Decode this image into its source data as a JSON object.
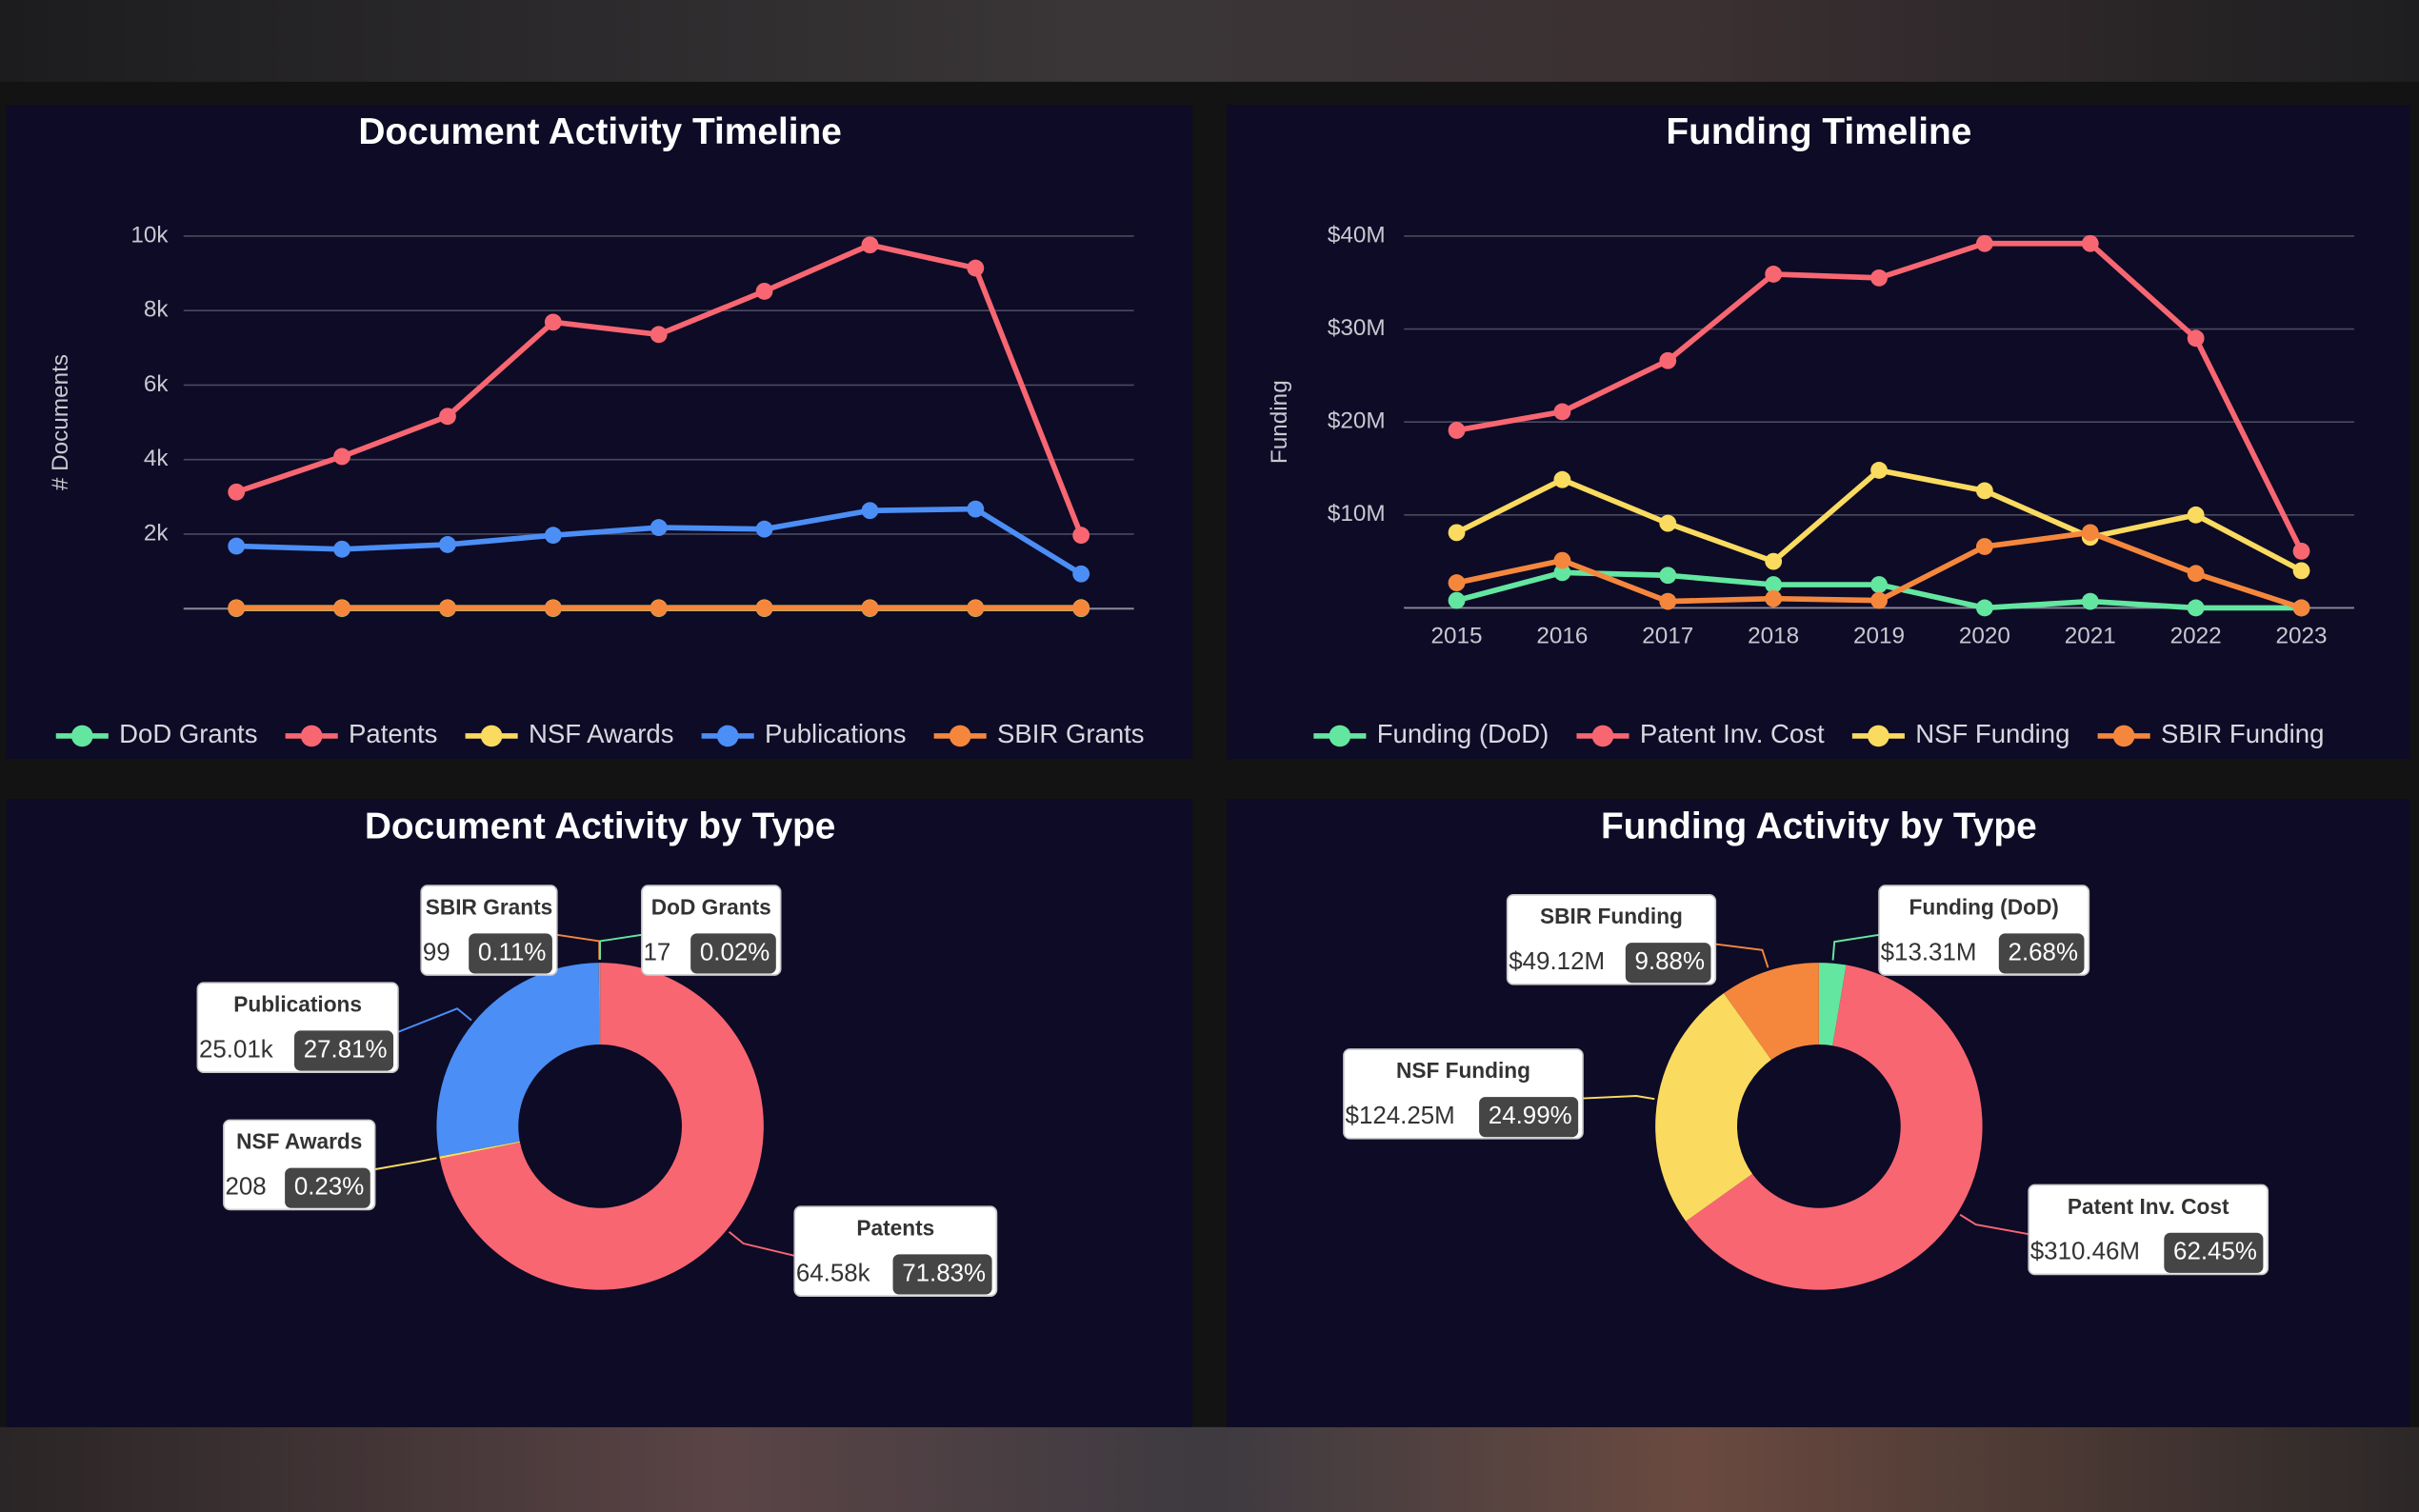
{
  "chart_data": [
    {
      "type": "line",
      "title": "Document Activity Timeline",
      "ylabel": "# Documents",
      "categories": [
        null,
        null,
        null,
        null,
        null,
        null,
        null,
        null,
        null
      ],
      "series": [
        {
          "name": "DoD Grants",
          "color": "#63e6a0",
          "values": [
            2,
            2,
            2,
            2,
            2,
            2,
            2,
            2,
            1
          ]
        },
        {
          "name": "Patents",
          "color": "#f86672",
          "values": [
            3130,
            4083,
            5161,
            7689,
            7358,
            8518,
            9762,
            9140,
            1969
          ]
        },
        {
          "name": "NSF Awards",
          "color": "#fadb5f",
          "values": [
            23,
            23,
            23,
            23,
            23,
            23,
            23,
            23,
            24
          ]
        },
        {
          "name": "Publications",
          "color": "#4b8ef5",
          "values": [
            1679,
            1596,
            1720,
            1969,
            2176,
            2135,
            2632,
            2674,
            933
          ]
        },
        {
          "name": "SBIR Grants",
          "color": "#f5873d",
          "values": [
            11,
            11,
            11,
            11,
            11,
            11,
            11,
            11,
            11
          ]
        }
      ],
      "ylim": [
        0,
        10000
      ],
      "yticks": [
        {
          "value": 2000,
          "label": "2k"
        },
        {
          "value": 4000,
          "label": "4k"
        },
        {
          "value": 6000,
          "label": "6k"
        },
        {
          "value": 8000,
          "label": "8k"
        },
        {
          "value": 10000,
          "label": "10k"
        }
      ],
      "grid": true,
      "legend": "bottom"
    },
    {
      "type": "line",
      "title": "Funding Timeline",
      "ylabel": "Funding",
      "categories": [
        "2015",
        "2016",
        "2017",
        "2018",
        "2019",
        "2020",
        "2021",
        "2022",
        "2023"
      ],
      "series": [
        {
          "name": "Funding (DoD)",
          "color": "#63e6a0",
          "values": [
            800000,
            3800000,
            3500000,
            2500000,
            2500000,
            0,
            700000,
            0,
            0
          ]
        },
        {
          "name": "Patent Inv. Cost",
          "color": "#f86672",
          "values": [
            19100000,
            21100000,
            26600000,
            35900000,
            35500000,
            39200000,
            39200000,
            29000000,
            6100000
          ]
        },
        {
          "name": "NSF Funding",
          "color": "#fadb5f",
          "values": [
            8100000,
            13800000,
            9100000,
            5000000,
            14800000,
            12600000,
            7600000,
            10000000,
            4000000
          ]
        },
        {
          "name": "SBIR Funding",
          "color": "#f5873d",
          "values": [
            2700000,
            5100000,
            700000,
            1000000,
            800000,
            6600000,
            8100000,
            3700000,
            0
          ]
        }
      ],
      "ylim": [
        0,
        40000000
      ],
      "yticks": [
        {
          "value": 10000000,
          "label": "$10M"
        },
        {
          "value": 20000000,
          "label": "$20M"
        },
        {
          "value": 30000000,
          "label": "$30M"
        },
        {
          "value": 40000000,
          "label": "$40M"
        }
      ],
      "grid": true,
      "legend": "bottom"
    },
    {
      "type": "pie",
      "title": "Document Activity by Type",
      "donut": true,
      "categories": [
        "Patents",
        "NSF Awards",
        "Publications",
        "SBIR Grants",
        "DoD Grants"
      ],
      "values": [
        64580,
        208,
        25010,
        99,
        17
      ],
      "value_labels": [
        "64.58k",
        "208",
        "25.01k",
        "99",
        "17"
      ],
      "percents": [
        71.83,
        0.23,
        27.81,
        0.11,
        0.02
      ],
      "percent_labels": [
        "71.83%",
        "0.23%",
        "27.81%",
        "0.11%",
        "0.02%"
      ],
      "colors": [
        "#f86672",
        "#fadb5f",
        "#4b8ef5",
        "#f5873d",
        "#63e6a0"
      ]
    },
    {
      "type": "pie",
      "title": "Funding Activity by Type",
      "donut": true,
      "categories": [
        "Funding (DoD)",
        "Patent Inv. Cost",
        "NSF Funding",
        "SBIR Funding"
      ],
      "values": [
        13310000,
        310460000,
        124250000,
        49120000
      ],
      "value_labels": [
        "$13.31M",
        "$310.46M",
        "$124.25M",
        "$49.12M"
      ],
      "percents": [
        2.68,
        62.45,
        24.99,
        9.88
      ],
      "percent_labels": [
        "2.68%",
        "62.45%",
        "24.99%",
        "9.88%"
      ],
      "colors": [
        "#63e6a0",
        "#f86672",
        "#fadb5f",
        "#f5873d"
      ]
    }
  ]
}
